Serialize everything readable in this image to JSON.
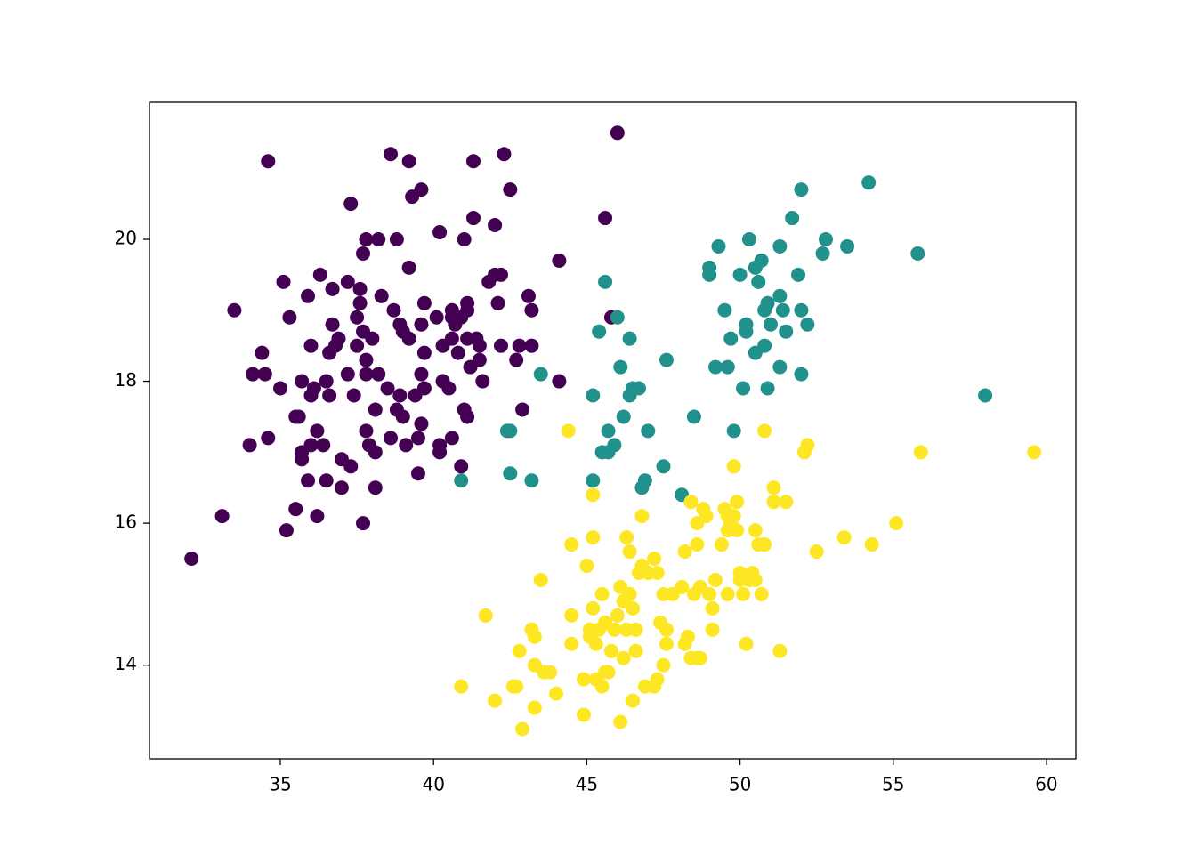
{
  "chart_data": {
    "type": "scatter",
    "xlim": [
      30.73,
      60.96
    ],
    "ylim": [
      12.68,
      21.93
    ],
    "xticks": [
      35,
      40,
      45,
      50,
      55,
      60
    ],
    "yticks": [
      14,
      16,
      18,
      20
    ],
    "grid": false,
    "series": [
      {
        "color": "#440154",
        "x": [
          32.1,
          33.1,
          33.5,
          34.6,
          34.0,
          34.1,
          34.4,
          34.5,
          34.6,
          35.0,
          35.1,
          35.2,
          35.3,
          35.5,
          35.5,
          35.6,
          35.7,
          35.7,
          35.7,
          35.9,
          35.9,
          36.0,
          36.0,
          36.0,
          36.1,
          36.2,
          36.2,
          36.3,
          36.4,
          36.5,
          36.5,
          36.6,
          36.6,
          36.7,
          36.7,
          36.8,
          36.9,
          37.0,
          37.0,
          37.2,
          37.2,
          37.3,
          37.3,
          37.4,
          37.5,
          37.5,
          37.6,
          37.6,
          37.7,
          37.7,
          37.7,
          37.8,
          37.8,
          37.8,
          37.8,
          37.9,
          38.0,
          38.1,
          38.1,
          38.2,
          38.2,
          38.1,
          38.3,
          38.5,
          38.6,
          38.6,
          38.7,
          38.8,
          38.8,
          38.9,
          38.9,
          39.0,
          39.0,
          39.1,
          39.2,
          39.2,
          39.2,
          39.3,
          39.4,
          39.5,
          39.5,
          39.6,
          39.6,
          39.6,
          39.7,
          39.7,
          39.7,
          39.6,
          40.1,
          40.2,
          40.2,
          40.2,
          40.3,
          40.3,
          40.5,
          40.6,
          40.6,
          40.6,
          40.6,
          40.7,
          40.8,
          40.9,
          40.9,
          41.0,
          41.0,
          41.1,
          41.1,
          41.1,
          41.1,
          41.2,
          41.3,
          41.3,
          41.4,
          41.5,
          41.5,
          41.6,
          41.8,
          42.0,
          42.0,
          42.1,
          42.2,
          42.2,
          42.3,
          42.5,
          42.7,
          42.8,
          42.9,
          43.1,
          43.2,
          43.2,
          44.1,
          44.1,
          45.6,
          45.8,
          46.0
        ],
        "values": [
          15.5,
          16.1,
          19.0,
          21.1,
          17.1,
          18.1,
          18.4,
          18.1,
          17.2,
          17.9,
          19.4,
          15.9,
          18.9,
          17.5,
          16.2,
          17.5,
          17.0,
          16.9,
          18.0,
          19.2,
          16.6,
          18.5,
          17.8,
          17.1,
          17.9,
          16.1,
          17.3,
          19.5,
          17.1,
          18.0,
          16.6,
          18.4,
          17.8,
          19.3,
          18.8,
          18.5,
          18.6,
          16.9,
          16.5,
          19.4,
          18.1,
          20.5,
          16.8,
          17.8,
          18.9,
          18.5,
          19.3,
          19.1,
          19.8,
          18.7,
          16.0,
          20.0,
          18.3,
          17.3,
          18.1,
          17.1,
          18.6,
          16.5,
          17.0,
          20.0,
          18.1,
          17.6,
          19.2,
          17.9,
          21.2,
          17.2,
          19.0,
          20.0,
          17.6,
          18.8,
          17.8,
          17.5,
          18.7,
          17.1,
          21.1,
          19.6,
          18.6,
          20.6,
          17.8,
          16.7,
          17.2,
          20.7,
          18.8,
          18.1,
          17.9,
          18.4,
          19.1,
          17.4,
          18.9,
          20.1,
          17.1,
          17.0,
          18.0,
          18.5,
          17.9,
          18.6,
          18.9,
          19.0,
          17.2,
          18.8,
          18.4,
          16.8,
          18.9,
          20.0,
          17.6,
          17.5,
          19.0,
          19.1,
          18.6,
          18.2,
          21.1,
          20.3,
          18.6,
          18.3,
          18.5,
          18.0,
          19.4,
          20.2,
          19.5,
          19.1,
          19.5,
          18.5,
          21.2,
          20.7,
          18.3,
          18.5,
          17.6,
          19.2,
          19.0,
          18.5,
          19.7,
          18.0,
          20.3,
          18.9,
          21.5
        ]
      },
      {
        "color": "#21918c",
        "x": [
          40.9,
          42.4,
          42.5,
          42.5,
          43.2,
          43.5,
          45.2,
          45.2,
          45.4,
          45.5,
          45.6,
          45.7,
          45.7,
          45.9,
          46.0,
          46.1,
          46.2,
          46.4,
          46.4,
          46.5,
          46.7,
          46.8,
          46.9,
          47.0,
          47.5,
          47.6,
          48.1,
          48.5,
          49.0,
          49.0,
          49.2,
          49.3,
          49.5,
          49.6,
          49.7,
          49.8,
          50.0,
          50.1,
          50.2,
          50.2,
          50.3,
          50.5,
          50.5,
          50.6,
          50.7,
          50.8,
          50.8,
          50.9,
          50.9,
          51.0,
          51.3,
          51.3,
          51.3,
          51.4,
          51.5,
          51.7,
          51.9,
          52.0,
          52.0,
          52.0,
          52.2,
          52.7,
          52.8,
          53.5,
          54.2,
          55.8,
          58.0
        ],
        "values": [
          16.6,
          17.3,
          17.3,
          16.7,
          16.6,
          18.1,
          17.8,
          16.6,
          18.7,
          17.0,
          19.4,
          17.3,
          17.0,
          17.1,
          18.9,
          18.2,
          17.5,
          18.6,
          17.8,
          17.9,
          17.9,
          16.5,
          16.6,
          17.3,
          16.8,
          18.3,
          16.4,
          17.5,
          19.6,
          19.5,
          18.2,
          19.9,
          19.0,
          18.2,
          18.6,
          17.3,
          19.5,
          17.9,
          18.8,
          18.7,
          20.0,
          19.6,
          18.4,
          19.4,
          19.7,
          19.0,
          18.5,
          19.1,
          17.9,
          18.8,
          19.9,
          19.2,
          18.2,
          19.0,
          18.7,
          20.3,
          19.5,
          20.7,
          19.0,
          18.1,
          18.8,
          19.8,
          20.0,
          19.9,
          20.8,
          19.8,
          17.8
        ]
      },
      {
        "color": "#fde725",
        "x": [
          40.9,
          41.7,
          42.0,
          42.6,
          42.7,
          42.8,
          42.9,
          43.2,
          43.3,
          43.3,
          43.3,
          43.5,
          43.6,
          43.8,
          44.0,
          44.4,
          44.5,
          44.5,
          44.5,
          44.9,
          44.9,
          45.0,
          45.1,
          45.1,
          45.2,
          45.2,
          45.2,
          45.3,
          45.3,
          45.4,
          45.5,
          45.5,
          45.6,
          45.6,
          45.7,
          45.8,
          45.9,
          46.0,
          46.1,
          46.1,
          46.2,
          46.2,
          46.3,
          46.3,
          46.4,
          46.4,
          46.5,
          46.5,
          46.6,
          46.6,
          46.7,
          46.8,
          46.8,
          46.9,
          47.0,
          47.2,
          47.2,
          47.3,
          47.3,
          47.4,
          47.5,
          47.5,
          47.6,
          47.6,
          47.8,
          48.1,
          48.2,
          48.2,
          48.3,
          48.4,
          48.4,
          48.5,
          48.6,
          48.6,
          48.6,
          48.7,
          48.7,
          48.8,
          48.9,
          49.0,
          49.1,
          49.1,
          49.2,
          49.4,
          49.5,
          49.6,
          49.6,
          49.6,
          49.7,
          49.8,
          49.8,
          49.9,
          49.9,
          50.0,
          50.0,
          50.1,
          50.2,
          50.3,
          50.4,
          50.5,
          50.5,
          50.6,
          50.7,
          50.8,
          50.8,
          51.1,
          51.1,
          51.3,
          51.5,
          52.1,
          52.2,
          52.5,
          53.4,
          54.3,
          55.1,
          55.9,
          59.6
        ],
        "values": [
          13.7,
          14.7,
          13.5,
          13.7,
          13.7,
          14.2,
          13.1,
          14.5,
          14.4,
          13.4,
          14.0,
          15.2,
          13.9,
          13.9,
          13.6,
          17.3,
          14.7,
          14.3,
          15.7,
          13.3,
          13.8,
          15.4,
          14.5,
          14.4,
          16.4,
          15.8,
          14.8,
          13.8,
          14.3,
          14.5,
          13.7,
          15.0,
          13.9,
          14.6,
          13.9,
          14.2,
          14.5,
          14.7,
          15.1,
          13.2,
          14.9,
          14.1,
          15.8,
          14.5,
          15.6,
          15.0,
          13.5,
          14.8,
          14.2,
          14.5,
          15.3,
          16.1,
          15.4,
          13.7,
          15.3,
          15.5,
          13.7,
          13.8,
          15.3,
          14.6,
          15.0,
          14.0,
          14.5,
          14.3,
          15.0,
          15.1,
          15.6,
          14.3,
          14.4,
          16.3,
          14.1,
          15.0,
          16.0,
          15.7,
          14.1,
          15.1,
          14.1,
          16.2,
          16.1,
          15.0,
          14.5,
          14.8,
          15.2,
          15.7,
          16.2,
          16.1,
          15.9,
          15.0,
          16.0,
          16.8,
          16.1,
          15.9,
          16.3,
          15.3,
          15.2,
          15.0,
          14.3,
          15.2,
          15.3,
          15.9,
          15.2,
          15.7,
          15.0,
          15.7,
          17.3,
          16.5,
          16.3,
          14.2,
          16.3,
          17.0,
          17.1,
          15.6,
          15.8,
          15.7,
          16.0,
          17.0,
          17.0
        ]
      }
    ]
  }
}
